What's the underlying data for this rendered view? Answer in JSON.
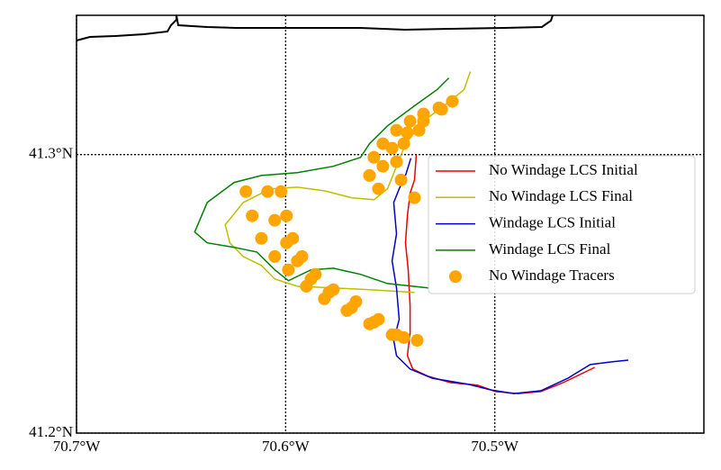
{
  "chart_data": {
    "type": "line",
    "xlim": [
      -70.7,
      -70.4
    ],
    "ylim": [
      41.2,
      41.35
    ],
    "xticks": [
      {
        "value": -70.7,
        "label": "70.7°W"
      },
      {
        "value": -70.6,
        "label": "70.6°W"
      },
      {
        "value": -70.5,
        "label": "70.5°W"
      }
    ],
    "yticks": [
      {
        "value": 41.2,
        "label": "41.2°N"
      },
      {
        "value": 41.3,
        "label": "41.3°N"
      }
    ],
    "grid": true,
    "legend": "center right",
    "series": [
      {
        "name": "No Windage LCS Initial",
        "type": "line",
        "color": "#ee0000",
        "x": [
          -70.5375,
          -70.5384,
          -70.5405,
          -70.5418,
          -70.5427,
          -70.5414,
          -70.5405,
          -70.5405,
          -70.5418,
          -70.5392,
          -70.5319,
          -70.5211,
          -70.5082,
          -70.4996,
          -70.4888,
          -70.478,
          -70.4673,
          -70.4522
        ],
        "y": [
          41.3,
          41.2909,
          41.2861,
          41.278,
          41.2683,
          41.2586,
          41.2456,
          41.2359,
          41.2278,
          41.223,
          41.2204,
          41.2181,
          41.2172,
          41.2149,
          41.2142,
          41.2149,
          41.2181,
          41.2236
        ]
      },
      {
        "name": "No Windage LCS Final",
        "type": "line",
        "color": "#bfbf00",
        "x": [
          -70.5117,
          -70.5147,
          -70.5211,
          -70.5341,
          -70.5427,
          -70.547,
          -70.5513,
          -70.5578,
          -70.5685,
          -70.5815,
          -70.5944,
          -70.6073,
          -70.6203,
          -70.6289,
          -70.6267,
          -70.6203,
          -70.6116,
          -70.6052,
          -70.5944,
          -70.5772,
          -70.5599,
          -70.5384
        ],
        "y": [
          41.3298,
          41.3233,
          41.3194,
          41.312,
          41.3039,
          41.2958,
          41.2877,
          41.2838,
          41.2845,
          41.287,
          41.2883,
          41.2877,
          41.2828,
          41.2748,
          41.2683,
          41.2634,
          41.2602,
          41.2553,
          41.2527,
          41.2521,
          41.2515,
          41.2505
        ]
      },
      {
        "name": "Windage LCS Initial",
        "type": "line",
        "color": "#0000cc",
        "x": [
          -70.5401,
          -70.5427,
          -70.5457,
          -70.5483,
          -70.547,
          -70.5491,
          -70.547,
          -70.5457,
          -70.5483,
          -70.547,
          -70.5405,
          -70.5298,
          -70.5125,
          -70.5017,
          -70.491,
          -70.478,
          -70.4651,
          -70.4543,
          -70.4436,
          -70.4362
        ],
        "y": [
          41.2987,
          41.2925,
          41.2877,
          41.2828,
          41.2715,
          41.2618,
          41.2521,
          41.2408,
          41.2333,
          41.2278,
          41.223,
          41.2197,
          41.2175,
          41.2155,
          41.2142,
          41.2152,
          41.2197,
          41.2246,
          41.2256,
          41.2262
        ]
      },
      {
        "name": "Windage LCS Final",
        "type": "line",
        "color": "#008000",
        "x": [
          -70.522,
          -70.5276,
          -70.5384,
          -70.5513,
          -70.5599,
          -70.5642,
          -70.5772,
          -70.5944,
          -70.6116,
          -70.6246,
          -70.6375,
          -70.6435,
          -70.6375,
          -70.6246,
          -70.6138,
          -70.6052,
          -70.5987,
          -70.5879,
          -70.5772,
          -70.5642,
          -70.5513,
          -70.5319
        ],
        "y": [
          41.3275,
          41.3233,
          41.3175,
          41.3103,
          41.3039,
          41.299,
          41.2958,
          41.2935,
          41.2925,
          41.29,
          41.2828,
          41.2722,
          41.2683,
          41.2667,
          41.265,
          41.2586,
          41.2547,
          41.2586,
          41.2592,
          41.257,
          41.2537,
          41.2521
        ]
      },
      {
        "name": "No Windage Tracers",
        "type": "scatter",
        "color": "#ffa500",
        "x": [
          -70.619,
          -70.616,
          -70.6116,
          -70.6052,
          -70.5987,
          -70.5901,
          -70.5815,
          -70.5707,
          -70.5599,
          -70.5491,
          -70.5371,
          -70.6086,
          -70.6052,
          -70.5996,
          -70.5944,
          -70.5879,
          -70.5793,
          -70.5685,
          -70.5578,
          -70.547,
          -70.6022,
          -70.5996,
          -70.5966,
          -70.5922,
          -70.5858,
          -70.5772,
          -70.5664,
          -70.5556,
          -70.5435,
          -70.5599,
          -70.5578,
          -70.5535,
          -70.547,
          -70.5405,
          -70.5341,
          -70.5267,
          -70.5203,
          -70.5556,
          -70.5535,
          -70.5491,
          -70.5418,
          -70.5341,
          -70.5254,
          -70.5384,
          -70.5448,
          -70.547,
          -70.5435,
          -70.5362
        ],
        "y": [
          41.2867,
          41.278,
          41.2699,
          41.2634,
          41.2586,
          41.2527,
          41.2482,
          41.244,
          41.2392,
          41.2353,
          41.2333,
          41.2867,
          41.2764,
          41.2683,
          41.2618,
          41.2553,
          41.2505,
          41.245,
          41.2398,
          41.2353,
          41.2867,
          41.278,
          41.2699,
          41.2634,
          41.257,
          41.2515,
          41.2472,
          41.2408,
          41.2343,
          41.2925,
          41.299,
          41.3039,
          41.3087,
          41.312,
          41.3146,
          41.3168,
          41.3191,
          41.2877,
          41.2958,
          41.3023,
          41.3078,
          41.312,
          41.3162,
          41.2845,
          41.2909,
          41.2974,
          41.3039,
          41.3087
        ]
      }
    ]
  }
}
